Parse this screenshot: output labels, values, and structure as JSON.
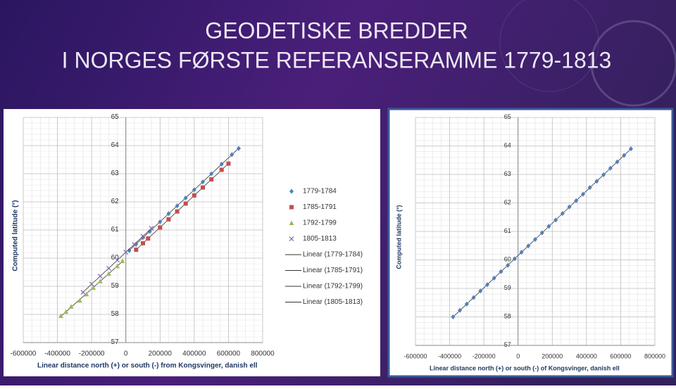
{
  "title_lines": [
    "GEODETISKE BREDDER",
    "I NORGES FØRSTE REFERANSERAMME 1779-1813"
  ],
  "chart_data": [
    {
      "type": "scatter",
      "xlabel": "Linear distance north (+) or south (-) from Kongsvinger, danish ell",
      "ylabel": "Computed latitude (°)",
      "xlim": [
        -600000,
        800000
      ],
      "xticks": [
        -600000,
        -400000,
        -200000,
        0,
        200000,
        400000,
        600000,
        800000
      ],
      "ylim": [
        57,
        65
      ],
      "yticks": [
        57,
        58,
        59,
        60,
        61,
        62,
        63,
        64,
        65
      ],
      "grid": true,
      "legend": "right",
      "series": [
        {
          "name": "1779-1784",
          "color": "#4f81bd",
          "marker": "diamond",
          "x": [
            20000,
            60000,
            100000,
            140000,
            200000,
            250000,
            300000,
            350000,
            400000,
            450000,
            500000,
            560000,
            620000,
            660000
          ],
          "values": [
            60.27,
            60.5,
            60.73,
            60.95,
            61.29,
            61.58,
            61.86,
            62.14,
            62.43,
            62.71,
            63.0,
            63.34,
            63.68,
            63.9
          ]
        },
        {
          "name": "1785-1791",
          "color": "#c0504d",
          "marker": "square",
          "x": [
            60000,
            100000,
            130000,
            200000,
            250000,
            300000,
            350000,
            400000,
            450000,
            500000,
            560000,
            600000
          ],
          "values": [
            60.3,
            60.53,
            60.7,
            61.09,
            61.38,
            61.66,
            61.94,
            62.23,
            62.51,
            62.8,
            63.14,
            63.36
          ]
        },
        {
          "name": "1792-1799",
          "color": "#9bbb59",
          "marker": "triangle",
          "x": [
            -380000,
            -350000,
            -320000,
            -270000,
            -230000,
            -190000,
            -150000,
            -100000,
            -50000,
            -20000
          ],
          "values": [
            57.95,
            58.1,
            58.28,
            58.5,
            58.72,
            58.95,
            59.18,
            59.45,
            59.72,
            59.9
          ]
        },
        {
          "name": "1805-1813",
          "color": "#8064a2",
          "marker": "x",
          "x": [
            -250000,
            -200000,
            -150000,
            -100000,
            -50000,
            0,
            50000,
            100000,
            150000
          ],
          "values": [
            58.79,
            59.08,
            59.36,
            59.64,
            59.93,
            60.21,
            60.49,
            60.78,
            61.06
          ]
        }
      ],
      "trendlines": [
        {
          "name": "Linear (1779-1784)"
        },
        {
          "name": "Linear (1785-1791)"
        },
        {
          "name": "Linear (1792-1799)"
        },
        {
          "name": "Linear (1805-1813)"
        }
      ]
    },
    {
      "type": "scatter",
      "xlabel": "Linear distance north (+) or south (-) of Kongsvinger, danish ell",
      "ylabel": "Computed latitude (°)",
      "xlim": [
        -600000,
        800000
      ],
      "xticks": [
        -600000,
        -400000,
        -200000,
        0,
        200000,
        400000,
        600000,
        800000
      ],
      "ylim": [
        57,
        65
      ],
      "yticks": [
        57,
        58,
        59,
        60,
        61,
        62,
        63,
        64,
        65
      ],
      "grid": true,
      "series": [
        {
          "color": "#4f81bd",
          "marker": "diamond",
          "x": [
            -380000,
            -340000,
            -300000,
            -260000,
            -220000,
            -180000,
            -140000,
            -100000,
            -60000,
            -20000,
            20000,
            60000,
            100000,
            140000,
            180000,
            220000,
            260000,
            300000,
            340000,
            380000,
            420000,
            460000,
            500000,
            540000,
            580000,
            620000,
            660000
          ],
          "values": [
            58.0,
            58.23,
            58.45,
            58.68,
            58.91,
            59.13,
            59.36,
            59.59,
            59.81,
            60.04,
            60.27,
            60.49,
            60.72,
            60.95,
            61.18,
            61.4,
            61.63,
            61.86,
            62.08,
            62.31,
            62.54,
            62.76,
            62.99,
            63.22,
            63.44,
            63.67,
            63.9
          ]
        }
      ],
      "trendlines": [
        {}
      ]
    }
  ]
}
